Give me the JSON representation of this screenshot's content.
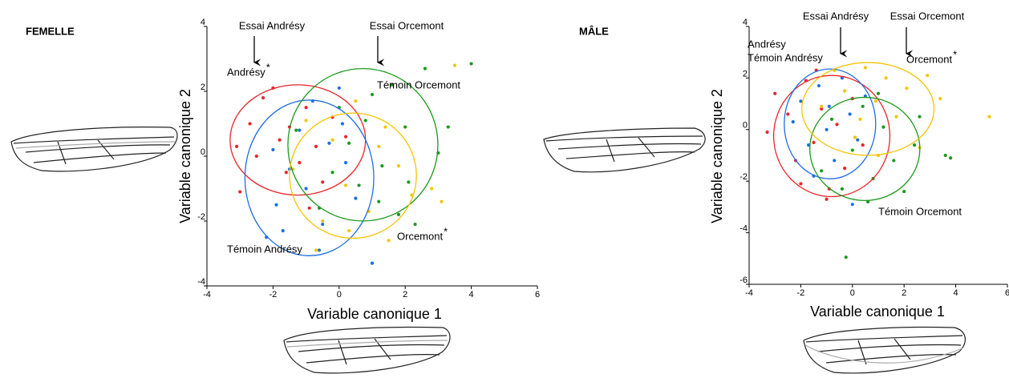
{
  "chart_data": [
    {
      "type": "scatter",
      "title": "FEMELLE",
      "x_label": "Variable canonique 1",
      "y_label": "Variable canonique 2",
      "xlim": [
        -4,
        6
      ],
      "ylim": [
        -4,
        4
      ],
      "xticks": [
        -4,
        -2,
        0,
        2,
        4,
        6
      ],
      "yticks": [
        -4,
        -2,
        0,
        2,
        4
      ],
      "annotations": [
        "Essai Andrésy",
        "Essai Orcemont"
      ],
      "series": [
        {
          "name": "Andrésy",
          "note": "*",
          "color": "#e8262a",
          "x": [
            -3.0,
            -2.7,
            -2.3,
            -2.0,
            -1.8,
            -1.5,
            -1.2,
            -1.0,
            -0.7,
            -0.5,
            -0.2,
            0.2,
            -2.5,
            -1.6,
            -0.9,
            -3.1
          ],
          "y": [
            -1.1,
            1.0,
            1.8,
            2.1,
            0.5,
            0.9,
            -0.2,
            1.5,
            0.3,
            -0.8,
            1.2,
            0.6,
            0.0,
            -0.5,
            -1.6,
            0.3
          ],
          "ellipse": [
            -1.25,
            0.5,
            2.05,
            1.7
          ]
        },
        {
          "name": "Témoin Andrésy",
          "color": "#1f6fe0",
          "x": [
            -2.2,
            -1.9,
            -1.5,
            -1.2,
            -1.0,
            -0.8,
            -0.5,
            -0.3,
            0.0,
            0.2,
            0.5,
            -1.7,
            -2.0,
            1.0,
            0.1,
            -0.6
          ],
          "y": [
            -2.5,
            -1.5,
            -0.4,
            0.8,
            -1.0,
            1.7,
            -2.1,
            0.4,
            2.1,
            -0.2,
            -1.3,
            -2.3,
            0.2,
            -3.3,
            1.0,
            -2.9
          ],
          "ellipse": [
            -0.9,
            -0.67,
            1.95,
            2.4
          ]
        },
        {
          "name": "Témoin Orcemont",
          "color": "#1a9a1a",
          "x": [
            -1.3,
            -0.6,
            0.0,
            0.3,
            0.6,
            1.0,
            1.3,
            1.6,
            2.0,
            2.3,
            2.6,
            3.0,
            3.3,
            1.2,
            0.8,
            -0.2,
            1.8,
            2.1,
            4.0
          ],
          "y": [
            0.8,
            -1.6,
            1.5,
            0.4,
            -0.9,
            1.9,
            -0.3,
            2.2,
            0.9,
            -2.1,
            2.7,
            0.1,
            0.9,
            -1.4,
            1.1,
            -0.5,
            -1.8,
            -0.8,
            2.85
          ],
          "ellipse": [
            0.72,
            0.35,
            2.27,
            2.35
          ]
        },
        {
          "name": "Orcemont",
          "note": "*",
          "color": "#f5c400",
          "x": [
            -1.4,
            -1.0,
            -0.5,
            -0.2,
            0.2,
            0.5,
            0.9,
            1.2,
            1.5,
            1.8,
            2.2,
            2.8,
            3.1,
            3.5,
            -0.7,
            0.3,
            1.4
          ],
          "y": [
            -0.4,
            1.1,
            -2.0,
            0.5,
            -0.9,
            1.7,
            -1.7,
            0.3,
            -2.6,
            -0.3,
            -1.2,
            -1.0,
            -1.4,
            2.8,
            -2.9,
            -2.3,
            0.9
          ],
          "ellipse": [
            0.42,
            -0.6,
            1.92,
            1.93
          ]
        }
      ]
    },
    {
      "type": "scatter",
      "title": "MÂLE",
      "x_label": "Variable canonique 1",
      "y_label": "Variable canonique 2",
      "xlim": [
        -4,
        6
      ],
      "ylim": [
        -6,
        4
      ],
      "xticks": [
        -4,
        -2,
        0,
        2,
        4,
        6
      ],
      "yticks": [
        -6,
        -4,
        -2,
        0,
        2,
        4
      ],
      "annotations": [
        "Essai Andrésy",
        "Essai Orcemont"
      ],
      "series": [
        {
          "name": "Andrésy",
          "color": "#e8262a",
          "x": [
            -3.3,
            -3.0,
            -2.5,
            -2.2,
            -1.8,
            -1.5,
            -1.2,
            -0.9,
            -0.6,
            -0.3,
            0.0,
            0.4,
            -1.0,
            -2.0,
            -1.4
          ],
          "y": [
            -0.1,
            1.4,
            0.6,
            -1.2,
            1.9,
            -0.5,
            0.8,
            -2.3,
            0.2,
            -1.5,
            1.2,
            -0.6,
            -2.7,
            -2.1,
            2.3
          ],
          "ellipse": [
            -0.8,
            -0.25,
            2.25,
            2.35
          ]
        },
        {
          "name": "Témoin Andrésy",
          "color": "#1f6fe0",
          "x": [
            -2.3,
            -2.0,
            -1.7,
            -1.3,
            -1.0,
            -0.7,
            -0.4,
            -0.1,
            0.2,
            0.5,
            -1.5,
            -0.9,
            0.0
          ],
          "y": [
            0.3,
            1.1,
            -0.6,
            1.7,
            0.0,
            -1.2,
            2.0,
            0.6,
            -0.4,
            1.3,
            -1.8,
            0.9,
            -2.9
          ],
          "ellipse": [
            -0.87,
            0.22,
            1.77,
            2.13
          ]
        },
        {
          "name": "Témoin Orcemont",
          "color": "#1a9a1a",
          "x": [
            -1.2,
            -0.8,
            -0.4,
            0.0,
            0.4,
            0.8,
            1.2,
            1.6,
            2.0,
            2.4,
            0.6,
            1.0,
            -0.25,
            3.6,
            3.8,
            2.6
          ],
          "y": [
            -1.6,
            0.4,
            -2.3,
            -0.8,
            0.9,
            -1.9,
            0.1,
            -1.2,
            -2.4,
            -0.6,
            -2.8,
            1.4,
            -4.95,
            -1.0,
            -1.1,
            0.5
          ],
          "ellipse": [
            0.48,
            -0.75,
            2.13,
            2.0
          ]
        },
        {
          "name": "Orcemont",
          "note": "*",
          "color": "#f5c400",
          "x": [
            -1.2,
            -0.7,
            -0.3,
            0.1,
            0.5,
            0.9,
            1.3,
            1.7,
            2.1,
            2.6,
            3.4,
            5.3,
            0.3,
            1.0,
            2.9
          ],
          "y": [
            0.9,
            2.3,
            1.5,
            -0.3,
            2.4,
            1.1,
            2.0,
            0.5,
            1.6,
            -0.7,
            1.2,
            0.5,
            0.4,
            -1.0,
            2.1
          ],
          "ellipse": [
            0.6,
            0.8,
            2.56,
            1.8
          ]
        }
      ]
    }
  ]
}
